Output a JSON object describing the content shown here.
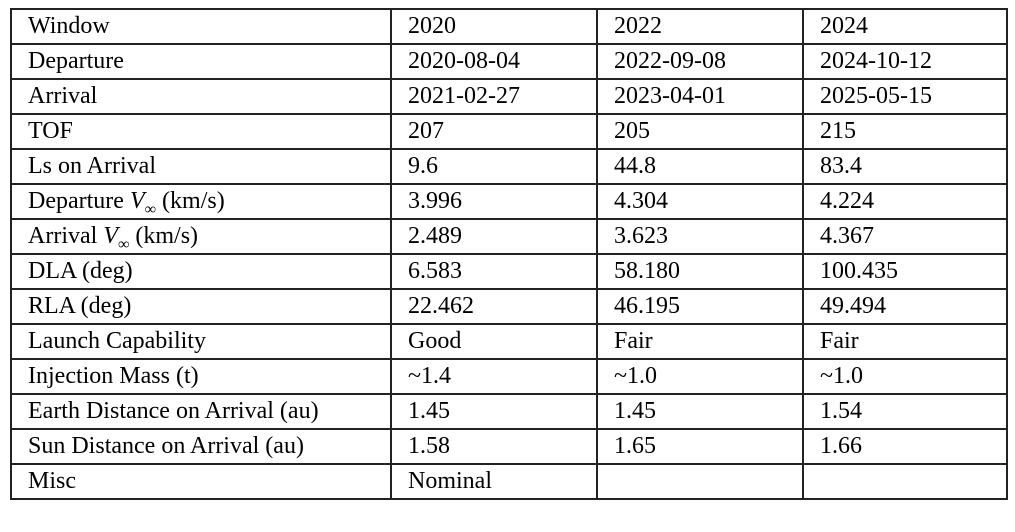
{
  "table": {
    "rows": [
      [
        "Window",
        "2020",
        "2022",
        "2024"
      ],
      [
        "Departure",
        "2020-08-04",
        "2022-09-08",
        "2024-10-12"
      ],
      [
        "Arrival",
        "2021-02-27",
        "2023-04-01",
        "2025-05-15"
      ],
      [
        "TOF",
        "207",
        "205",
        "215"
      ],
      [
        "Ls on Arrival",
        "9.6",
        "44.8",
        "83.4"
      ],
      [
        [
          "Departure ",
          "V",
          "∞",
          " (km/s)"
        ],
        "3.996",
        "4.304",
        "4.224"
      ],
      [
        [
          "Arrival ",
          "V",
          "∞",
          " (km/s)"
        ],
        "2.489",
        "3.623",
        "4.367"
      ],
      [
        "DLA (deg)",
        "6.583",
        "58.180",
        "100.435"
      ],
      [
        "RLA (deg)",
        "22.462",
        "46.195",
        "49.494"
      ],
      [
        "Launch Capability",
        "Good",
        "Fair",
        "Fair"
      ],
      [
        "Injection Mass (t)",
        "~1.4",
        "~1.0",
        "~1.0"
      ],
      [
        "Earth Distance on Arrival (au)",
        "1.45",
        "1.45",
        "1.54"
      ],
      [
        "Sun Distance on Arrival (au)",
        "1.58",
        "1.65",
        "1.66"
      ],
      [
        "Misc",
        "Nominal",
        null,
        null
      ]
    ]
  }
}
